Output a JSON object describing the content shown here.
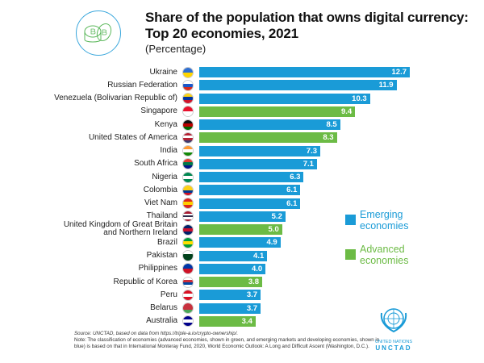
{
  "chart_data": {
    "type": "bar",
    "orientation": "horizontal",
    "title": "Share of the population that owns digital currency: Top 20 economies, 2021",
    "subtitle": "(Percentage)",
    "categories": [
      "Ukraine",
      "Russian Federation",
      "Venezuela (Bolivarian Republic of)",
      "Singapore",
      "Kenya",
      "United States of America",
      "India",
      "South Africa",
      "Nigeria",
      "Colombia",
      "Viet Nam",
      "Thailand",
      "United Kingdom of Great Britain and Northern Ireland",
      "Brazil",
      "Pakistan",
      "Philippines",
      "Republic of Korea",
      "Peru",
      "Belarus",
      "Australia"
    ],
    "values": [
      12.7,
      11.9,
      10.3,
      9.4,
      8.5,
      8.3,
      7.3,
      7.1,
      6.3,
      6.1,
      6.1,
      5.2,
      5.0,
      4.9,
      4.1,
      4.0,
      3.8,
      3.7,
      3.7,
      3.4
    ],
    "value_labels": [
      "12.7",
      "11.9",
      "10.3",
      "9.4",
      "8.5",
      "8.3",
      "7.3",
      "7.1",
      "6.3",
      "6.1",
      "6.1",
      "5.2",
      "5.0",
      "4.9",
      "4.1",
      "4.0",
      "3.8",
      "3.7",
      "3.7",
      "3.4"
    ],
    "group": [
      "E",
      "E",
      "E",
      "A",
      "E",
      "A",
      "E",
      "E",
      "E",
      "E",
      "E",
      "E",
      "A",
      "E",
      "E",
      "E",
      "A",
      "E",
      "E",
      "A"
    ],
    "legend": [
      {
        "key": "E",
        "label": "Emerging economies",
        "color": "#1a9bd7"
      },
      {
        "key": "A",
        "label": "Advanced economies",
        "color": "#6cbb45"
      }
    ],
    "legend_placement": "right",
    "grid": false,
    "xlim": [
      0,
      13
    ]
  },
  "flags": [
    [
      "#2f6fd1",
      "#ffd500"
    ],
    [
      "#ffffff",
      "#1c57c7",
      "#d52b1e"
    ],
    [
      "#f7d117",
      "#0033a0",
      "#cf142b"
    ],
    [
      "#e8112d",
      "#ffffff"
    ],
    [
      "#111111",
      "#bb0000",
      "#006600"
    ],
    [
      "#b22234",
      "#ffffff",
      "#b22234",
      "#3c3b6e"
    ],
    [
      "#ff9933",
      "#ffffff",
      "#138808"
    ],
    [
      "#e03c31",
      "#007749",
      "#001489"
    ],
    [
      "#008751",
      "#ffffff",
      "#008751"
    ],
    [
      "#fcd116",
      "#fcd116",
      "#003893",
      "#ce1126"
    ],
    [
      "#da251d",
      "#ffcd00",
      "#da251d"
    ],
    [
      "#a51931",
      "#ffffff",
      "#2d2a4a",
      "#ffffff",
      "#a51931"
    ],
    [
      "#012169",
      "#c8102e",
      "#012169"
    ],
    [
      "#009c3b",
      "#ffdf00",
      "#009c3b"
    ],
    [
      "#ffffff",
      "#01411c",
      "#01411c"
    ],
    [
      "#0038a8",
      "#ce1126"
    ],
    [
      "#ffffff",
      "#cd2e3a",
      "#0047a0",
      "#ffffff"
    ],
    [
      "#d91023",
      "#ffffff",
      "#d91023"
    ],
    [
      "#c8313e",
      "#c8313e",
      "#4aa657"
    ],
    [
      "#00008b",
      "#ffffff",
      "#00008b"
    ]
  ],
  "notes": {
    "source": "Source: UNCTAD, based on data from https://triple-a.io/crypto-ownership/.",
    "note": "Note: The classification of economies (advanced economies, shown in green, and emerging markets and developing economies, shown in blue) is based on that in International Monteray Fund, 2020, World Economic Outlook: A Long and Difficult Ascent (Washington, D.C.)."
  },
  "logo": {
    "line1": "UNITED NATIONS",
    "line2": "UNCTAD"
  }
}
